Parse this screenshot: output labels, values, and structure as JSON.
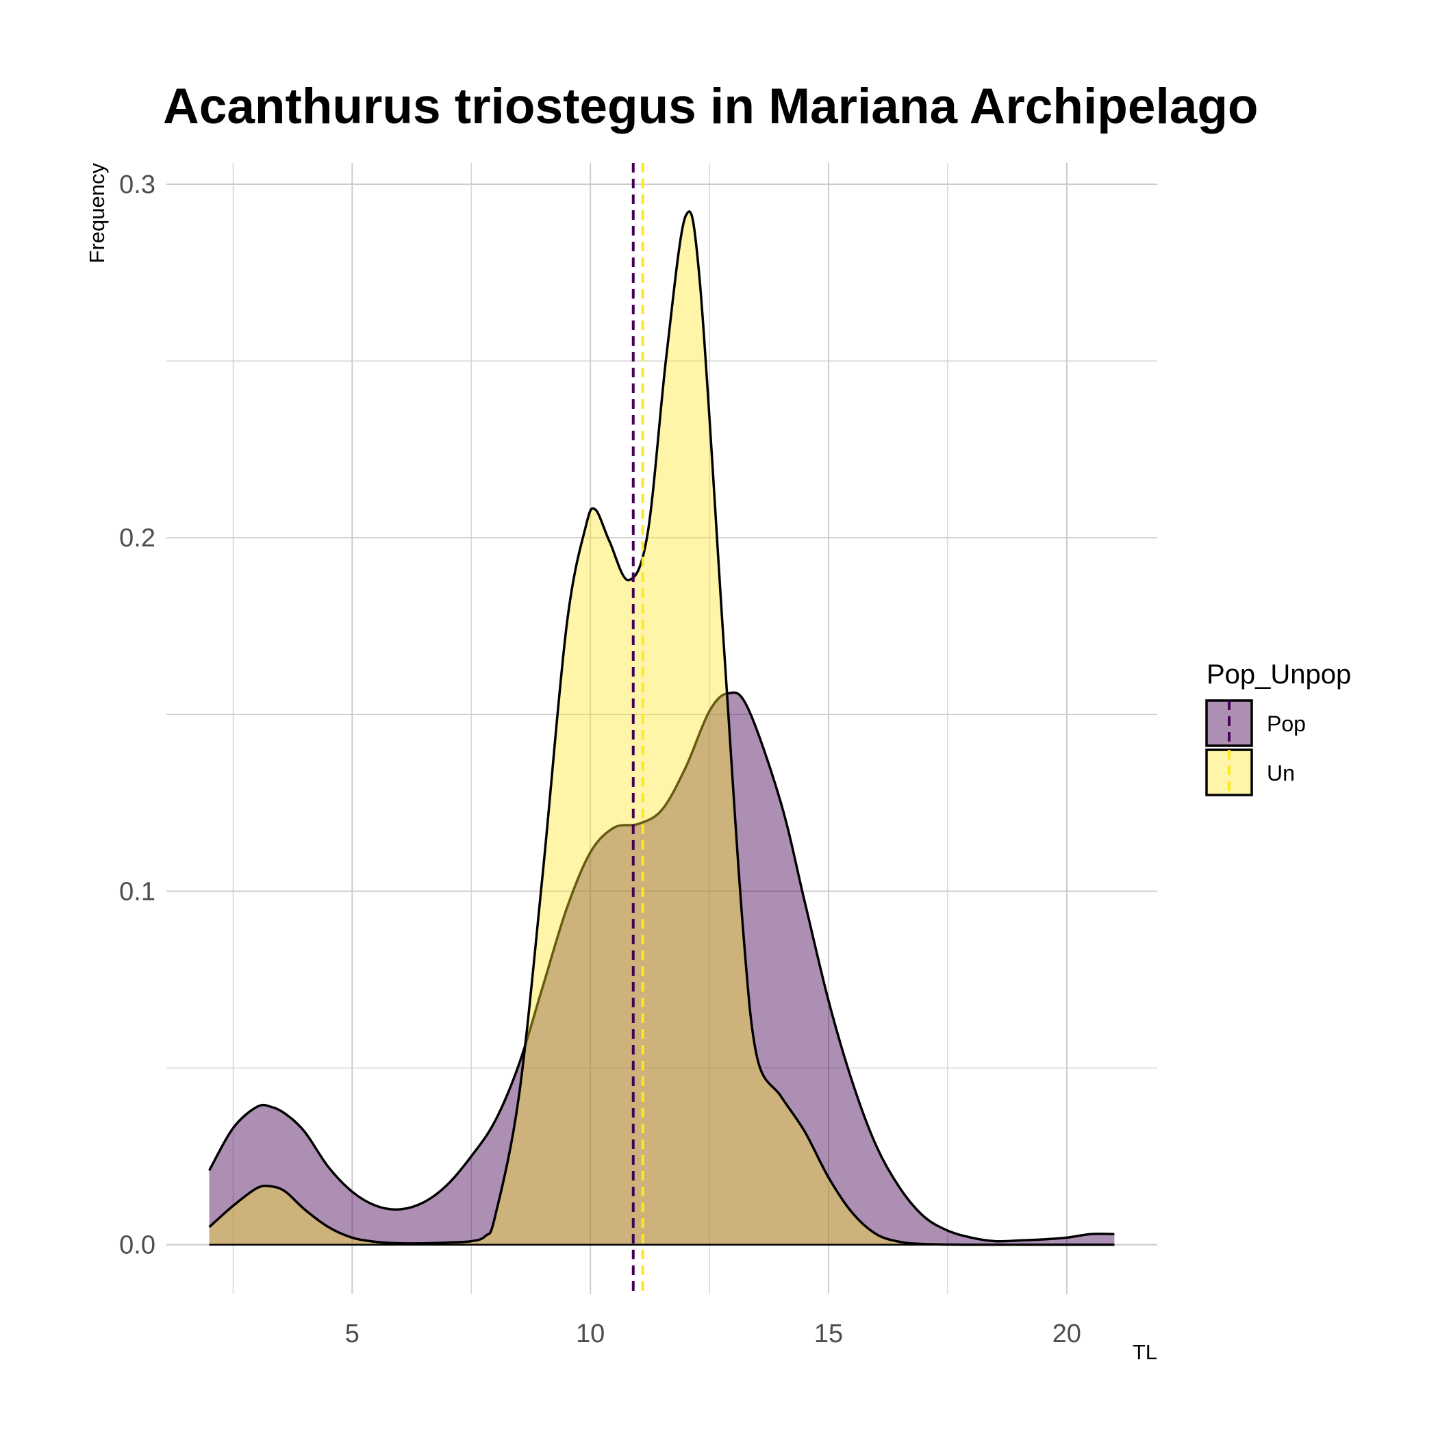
{
  "chart_data": {
    "type": "area",
    "title": "Acanthurus triostegus in Mariana Archipelago",
    "xlabel": "TL",
    "ylabel": "Frequency",
    "xlim": [
      1.1,
      21.9
    ],
    "ylim": [
      -0.014,
      0.306
    ],
    "x_ticks": [
      "5",
      "10",
      "15",
      "20"
    ],
    "y_ticks": [
      "0.0",
      "0.1",
      "0.2",
      "0.3"
    ],
    "grid": true,
    "legend": {
      "title": "Pop_Unpop",
      "position": "right"
    },
    "series": [
      {
        "name": "Pop",
        "fill": "#440154",
        "fill_opacity": 0.44,
        "mean_line": 10.9,
        "points": [
          [
            2.0,
            0.021
          ],
          [
            2.5,
            0.033
          ],
          [
            3.0,
            0.039
          ],
          [
            3.3,
            0.039
          ],
          [
            3.6,
            0.037
          ],
          [
            4.0,
            0.032
          ],
          [
            4.5,
            0.022
          ],
          [
            5.0,
            0.015
          ],
          [
            5.5,
            0.011
          ],
          [
            6.0,
            0.01
          ],
          [
            6.5,
            0.012
          ],
          [
            7.0,
            0.017
          ],
          [
            7.5,
            0.025
          ],
          [
            8.0,
            0.035
          ],
          [
            8.5,
            0.051
          ],
          [
            9.0,
            0.073
          ],
          [
            9.5,
            0.095
          ],
          [
            10.0,
            0.111
          ],
          [
            10.5,
            0.118
          ],
          [
            11.0,
            0.119
          ],
          [
            11.5,
            0.123
          ],
          [
            12.0,
            0.135
          ],
          [
            12.5,
            0.151
          ],
          [
            12.9,
            0.156
          ],
          [
            13.3,
            0.152
          ],
          [
            14.0,
            0.125
          ],
          [
            14.5,
            0.097
          ],
          [
            15.0,
            0.069
          ],
          [
            15.5,
            0.046
          ],
          [
            16.0,
            0.028
          ],
          [
            16.5,
            0.016
          ],
          [
            17.0,
            0.008
          ],
          [
            17.5,
            0.004
          ],
          [
            18.0,
            0.002
          ],
          [
            18.5,
            0.001
          ],
          [
            19.0,
            0.0012
          ],
          [
            19.5,
            0.0015
          ],
          [
            20.0,
            0.002
          ],
          [
            20.5,
            0.003
          ],
          [
            21.0,
            0.003
          ]
        ]
      },
      {
        "name": "Un",
        "fill": "#fde725",
        "fill_opacity": 0.4,
        "mean_line": 11.1,
        "points": [
          [
            2.0,
            0.005
          ],
          [
            2.5,
            0.011
          ],
          [
            3.0,
            0.016
          ],
          [
            3.3,
            0.0165
          ],
          [
            3.6,
            0.015
          ],
          [
            4.0,
            0.01
          ],
          [
            4.5,
            0.005
          ],
          [
            5.0,
            0.002
          ],
          [
            5.5,
            0.0008
          ],
          [
            6.0,
            0.0004
          ],
          [
            6.5,
            0.0004
          ],
          [
            7.0,
            0.0006
          ],
          [
            7.5,
            0.001
          ],
          [
            7.8,
            0.0025
          ],
          [
            8.0,
            0.008
          ],
          [
            8.5,
            0.042
          ],
          [
            9.0,
            0.105
          ],
          [
            9.5,
            0.175
          ],
          [
            9.9,
            0.203
          ],
          [
            10.1,
            0.208
          ],
          [
            10.4,
            0.199
          ],
          [
            10.8,
            0.188
          ],
          [
            11.2,
            0.201
          ],
          [
            11.6,
            0.252
          ],
          [
            12.0,
            0.291
          ],
          [
            12.3,
            0.272
          ],
          [
            12.8,
            0.17
          ],
          [
            13.2,
            0.09
          ],
          [
            13.5,
            0.053
          ],
          [
            14.0,
            0.042
          ],
          [
            14.5,
            0.032
          ],
          [
            15.0,
            0.019
          ],
          [
            15.5,
            0.009
          ],
          [
            16.0,
            0.003
          ],
          [
            16.5,
            0.0008
          ],
          [
            17.0,
            0.0002
          ],
          [
            18.0,
            0.0
          ],
          [
            19.0,
            0.0
          ],
          [
            20.0,
            0.0
          ],
          [
            21.0,
            0.0
          ]
        ]
      }
    ],
    "colors": {
      "pop_line": "#440154",
      "un_line": "#fde725",
      "outline": "#000000",
      "grid": "#cccccc"
    }
  }
}
